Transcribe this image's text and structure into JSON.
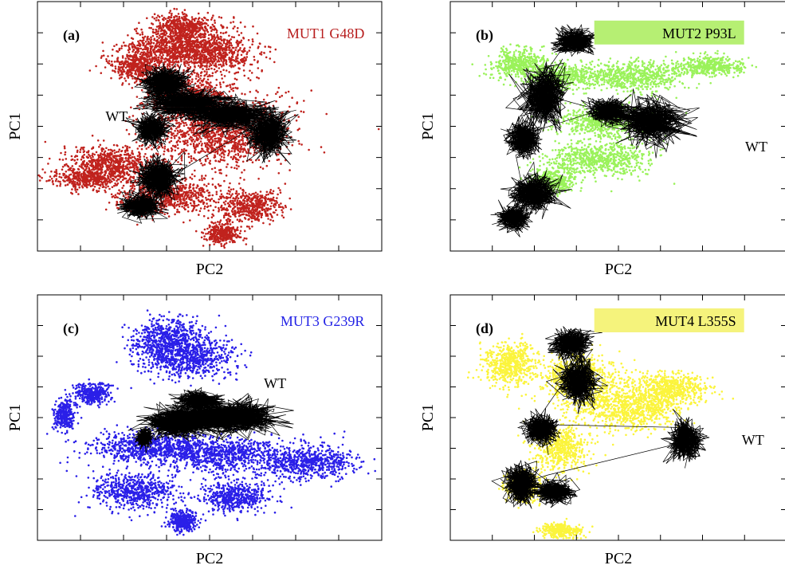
{
  "chart_data": [
    {
      "type": "scatter",
      "panel_label": "(a)",
      "xlabel": "PC2",
      "ylabel": "PC1",
      "legend": {
        "text": "MUT1 G48D",
        "color": "#b71c1c",
        "highlight": false
      },
      "wt_label": "WT",
      "grid": false,
      "series": [
        {
          "name": "MUT1 G48D",
          "color": "#c0221d",
          "clusters": [
            [
              0.43,
              0.1,
              0.09,
              0.05
            ],
            [
              0.39,
              0.18,
              0.14,
              0.07
            ],
            [
              0.5,
              0.21,
              0.14,
              0.08
            ],
            [
              0.44,
              0.38,
              0.12,
              0.08
            ],
            [
              0.29,
              0.26,
              0.08,
              0.06
            ],
            [
              0.53,
              0.52,
              0.2,
              0.14
            ],
            [
              0.22,
              0.65,
              0.14,
              0.07
            ],
            [
              0.15,
              0.71,
              0.1,
              0.04
            ],
            [
              0.38,
              0.78,
              0.16,
              0.07
            ],
            [
              0.62,
              0.82,
              0.09,
              0.06
            ],
            [
              0.54,
              0.93,
              0.05,
              0.04
            ]
          ]
        },
        {
          "name": "WT",
          "color": "#000000",
          "clusters": [
            [
              0.37,
              0.33,
              0.06,
              0.06
            ],
            [
              0.43,
              0.41,
              0.1,
              0.05
            ],
            [
              0.33,
              0.51,
              0.04,
              0.05
            ],
            [
              0.56,
              0.45,
              0.1,
              0.05
            ],
            [
              0.67,
              0.53,
              0.05,
              0.08
            ],
            [
              0.35,
              0.71,
              0.05,
              0.07
            ],
            [
              0.3,
              0.82,
              0.05,
              0.04
            ]
          ]
        }
      ]
    },
    {
      "type": "scatter",
      "panel_label": "(b)",
      "xlabel": "PC2",
      "ylabel": "PC1",
      "legend": {
        "text": "MUT2 P93L",
        "color": "#000000",
        "highlight": true,
        "bg": "#b6ef73"
      },
      "wt_label": "WT",
      "grid": false,
      "series": [
        {
          "name": "MUT2 P93L",
          "color": "#9af25a",
          "clusters": [
            [
              0.2,
              0.25,
              0.08,
              0.06
            ],
            [
              0.33,
              0.3,
              0.12,
              0.05
            ],
            [
              0.55,
              0.3,
              0.15,
              0.06
            ],
            [
              0.77,
              0.26,
              0.1,
              0.04
            ],
            [
              0.46,
              0.48,
              0.14,
              0.06
            ],
            [
              0.44,
              0.63,
              0.14,
              0.07
            ],
            [
              0.3,
              0.72,
              0.07,
              0.05
            ]
          ]
        },
        {
          "name": "WT",
          "color": "#000000",
          "clusters": [
            [
              0.37,
              0.16,
              0.05,
              0.04
            ],
            [
              0.28,
              0.38,
              0.06,
              0.1
            ],
            [
              0.6,
              0.48,
              0.09,
              0.08
            ],
            [
              0.47,
              0.44,
              0.05,
              0.04
            ],
            [
              0.22,
              0.55,
              0.04,
              0.06
            ],
            [
              0.25,
              0.77,
              0.06,
              0.06
            ],
            [
              0.19,
              0.87,
              0.04,
              0.04
            ]
          ]
        }
      ]
    },
    {
      "type": "scatter",
      "panel_label": "(c)",
      "xlabel": "PC2",
      "ylabel": "PC1",
      "legend": {
        "text": "MUT3 G239R",
        "color": "#2323e6",
        "highlight": false
      },
      "wt_label": "WT",
      "grid": false,
      "series": [
        {
          "name": "MUT3 G239R",
          "color": "#2a1fe8",
          "clusters": [
            [
              0.38,
              0.18,
              0.11,
              0.08
            ],
            [
              0.44,
              0.26,
              0.13,
              0.08
            ],
            [
              0.16,
              0.4,
              0.05,
              0.04
            ],
            [
              0.08,
              0.49,
              0.03,
              0.06
            ],
            [
              0.33,
              0.62,
              0.17,
              0.07
            ],
            [
              0.53,
              0.65,
              0.18,
              0.07
            ],
            [
              0.78,
              0.68,
              0.14,
              0.07
            ],
            [
              0.28,
              0.8,
              0.12,
              0.07
            ],
            [
              0.58,
              0.82,
              0.1,
              0.06
            ],
            [
              0.42,
              0.92,
              0.04,
              0.04
            ]
          ]
        },
        {
          "name": "WT",
          "color": "#000000",
          "clusters": [
            [
              0.4,
              0.52,
              0.08,
              0.05
            ],
            [
              0.5,
              0.5,
              0.12,
              0.05
            ],
            [
              0.59,
              0.5,
              0.1,
              0.06
            ],
            [
              0.47,
              0.43,
              0.05,
              0.03
            ],
            [
              0.31,
              0.58,
              0.02,
              0.03
            ]
          ]
        }
      ]
    },
    {
      "type": "scatter",
      "panel_label": "(d)",
      "xlabel": "PC2",
      "ylabel": "PC1",
      "legend": {
        "text": "MUT4 L355S",
        "color": "#000000",
        "highlight": true,
        "bg": "#f5f37c"
      },
      "wt_label": "WT",
      "grid": false,
      "series": [
        {
          "name": "MUT4 L355S",
          "color": "#fbf43c",
          "clusters": [
            [
              0.18,
              0.28,
              0.08,
              0.09
            ],
            [
              0.38,
              0.34,
              0.1,
              0.1
            ],
            [
              0.53,
              0.45,
              0.16,
              0.1
            ],
            [
              0.66,
              0.38,
              0.1,
              0.06
            ],
            [
              0.33,
              0.62,
              0.08,
              0.09
            ],
            [
              0.22,
              0.78,
              0.06,
              0.06
            ],
            [
              0.33,
              0.96,
              0.06,
              0.03
            ]
          ]
        },
        {
          "name": "WT",
          "color": "#000000",
          "clusters": [
            [
              0.36,
              0.2,
              0.05,
              0.05
            ],
            [
              0.38,
              0.35,
              0.05,
              0.08
            ],
            [
              0.27,
              0.55,
              0.04,
              0.05
            ],
            [
              0.7,
              0.59,
              0.04,
              0.07
            ],
            [
              0.21,
              0.77,
              0.04,
              0.07
            ],
            [
              0.31,
              0.8,
              0.05,
              0.04
            ]
          ]
        }
      ]
    }
  ]
}
